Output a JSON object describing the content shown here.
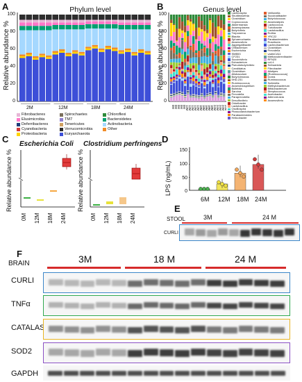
{
  "panel_a": {
    "letter": "A",
    "title": "Phylum level",
    "ylabel": "Relative abundance %",
    "yticks": [
      "100",
      "80",
      "60",
      "40",
      "20",
      "0"
    ],
    "groups": [
      "2M",
      "12M",
      "18M",
      "24M"
    ],
    "legend": [
      {
        "name": "Fibrobacteres",
        "color": "#e6b7d6"
      },
      {
        "name": "Spirochaetes",
        "color": "#7a6f5c"
      },
      {
        "name": "Chloroflexi",
        "color": "#2e8b3a"
      },
      {
        "name": "Elusimicrobia",
        "color": "#ff77c8"
      },
      {
        "name": "TM7",
        "color": "#8f7fcf"
      },
      {
        "name": "Bacteroidetes",
        "color": "#00a070"
      },
      {
        "name": "Deferribacteres",
        "color": "#1f3d7a"
      },
      {
        "name": "Tenericutes",
        "color": "#cfa060"
      },
      {
        "name": "Actinobacteria",
        "color": "#a5d8ff"
      },
      {
        "name": "Cyanobacteria",
        "color": "#d13b3b"
      },
      {
        "name": "Verrucomicrobia",
        "color": "#2d2d2d"
      },
      {
        "name": "Other",
        "color": "#f28c28"
      },
      {
        "name": "Proteobacteria",
        "color": "#ffd400"
      },
      {
        "name": "Euryarchaeota",
        "color": "#3d4fd8"
      }
    ]
  },
  "panel_b": {
    "letter": "B",
    "title": "Genus level",
    "ylabel": "Relative abundance %",
    "yticks": [
      "100",
      "80",
      "60",
      "40",
      "20",
      "0"
    ],
    "samples": [
      "0M",
      "0M",
      "0M",
      "0M",
      "0M",
      "12M",
      "12M",
      "12M",
      "12M",
      "12M",
      "18M",
      "18M",
      "18M",
      "18M",
      "18M",
      "24M",
      "24M",
      "24M",
      "24M",
      "24M"
    ],
    "legend_left": [
      "Lachnospira",
      "Shuttleworthia",
      "Clostridium",
      "Coprococcus",
      "Akkermansia",
      "Anaeroplasma",
      "Butyrivibrio",
      "Treponema",
      "Blautia",
      "Sphaerochaeta",
      "Anaerovibrio",
      "Aggregatibacter",
      "Oribacterium",
      "Escherichia",
      "SMB53",
      "CF231",
      "Succinivibrio",
      "Eubacterium",
      "Pseudobutyrivibrio",
      "Candidatus",
      "Clostridium",
      "Allobaculum",
      "Butyricimonas",
      "5HD-231",
      "Ruminococcus",
      "Anaerobiospirillum",
      "Bulleidia",
      "Sarcina",
      "Prevotella",
      "Paraprevotella",
      "Desulfovibrio",
      "Odoribacter",
      "Lactobacillus",
      "Oscillospira",
      "Phascolarctobacterium",
      "Parabacteroides",
      "Helicobacter"
    ],
    "legend_right": [
      "Veillonella",
      "Succinatibacter",
      "Butyricicoccus",
      "Anaerostipes",
      "Lactococcus",
      "Turicibacter",
      "Lactobacillus",
      "Rothia",
      "YRC22",
      "Parabacteroides",
      "Roseburia",
      "Lachnobacterium",
      "Clostridium",
      "Prevotella",
      "vadinCA11",
      "Methanobrevibacter",
      "RFN20",
      "rc4-4",
      "Schwartzia",
      "Fibrobacter",
      "Alistipes",
      "[Ruminococcus]",
      "Dorea",
      "Ruminococcus",
      "Sutterella",
      "Methylobacterium",
      "Bifidobacterium",
      "Streptococcus",
      "Acetobacter",
      "Adlercreutzia",
      "Anaerovibrio"
    ]
  },
  "panel_c": {
    "letter": "C",
    "title_left": "Escherichia Coli",
    "title_right": "Clostridium perfringens",
    "ylabel": "Relative abundance %",
    "groups": [
      "0M",
      "12M",
      "18M",
      "24M"
    ]
  },
  "panel_d": {
    "letter": "D",
    "ylabel": "LPS (ng/mL)",
    "yticks": [
      "150",
      "100",
      "50",
      "0"
    ],
    "groups": [
      "6M",
      "12M",
      "18M",
      "24M"
    ]
  },
  "panel_e": {
    "letter": "E",
    "stool_label": "STOOL",
    "groups": [
      "3M",
      "24 M"
    ],
    "rows": [
      "CURLI"
    ]
  },
  "panel_f": {
    "letter": "F",
    "brain_label": "BRAIN",
    "groups": [
      "3M",
      "18 M",
      "24 M"
    ],
    "rows": [
      "CURLI",
      "TNFα",
      "CATALASE",
      "SOD2",
      "GAPDH"
    ]
  },
  "chart_data": [
    {
      "type": "bar",
      "title": "Phylum level",
      "ylabel": "Relative abundance %",
      "ylim": [
        0,
        100
      ],
      "categories": [
        "2M",
        "12M",
        "18M",
        "24M"
      ],
      "series": [
        {
          "name": "Euryarchaeota",
          "values": [
            50,
            54,
            59,
            55
          ]
        },
        {
          "name": "Proteobacteria",
          "values": [
            2,
            2,
            2,
            2
          ]
        },
        {
          "name": "Other",
          "values": [
            2,
            2,
            2,
            2
          ]
        },
        {
          "name": "Actinobacteria",
          "values": [
            28,
            25,
            21,
            24
          ]
        },
        {
          "name": "Bacteroidetes",
          "values": [
            5,
            5,
            5,
            5
          ]
        },
        {
          "name": "Elusimicrobia",
          "values": [
            4,
            3,
            3,
            3
          ]
        },
        {
          "name": "Fibrobacteres",
          "values": [
            3,
            3,
            2,
            3
          ]
        },
        {
          "name": "Verrucomicrobia",
          "values": [
            6,
            6,
            6,
            6
          ]
        }
      ]
    },
    {
      "type": "scatter",
      "ylabel": "LPS (ng/mL)",
      "ylim": [
        0,
        150
      ],
      "categories": [
        "6M",
        "12M",
        "18M",
        "24M"
      ],
      "values": [
        5,
        22,
        60,
        90
      ]
    }
  ]
}
